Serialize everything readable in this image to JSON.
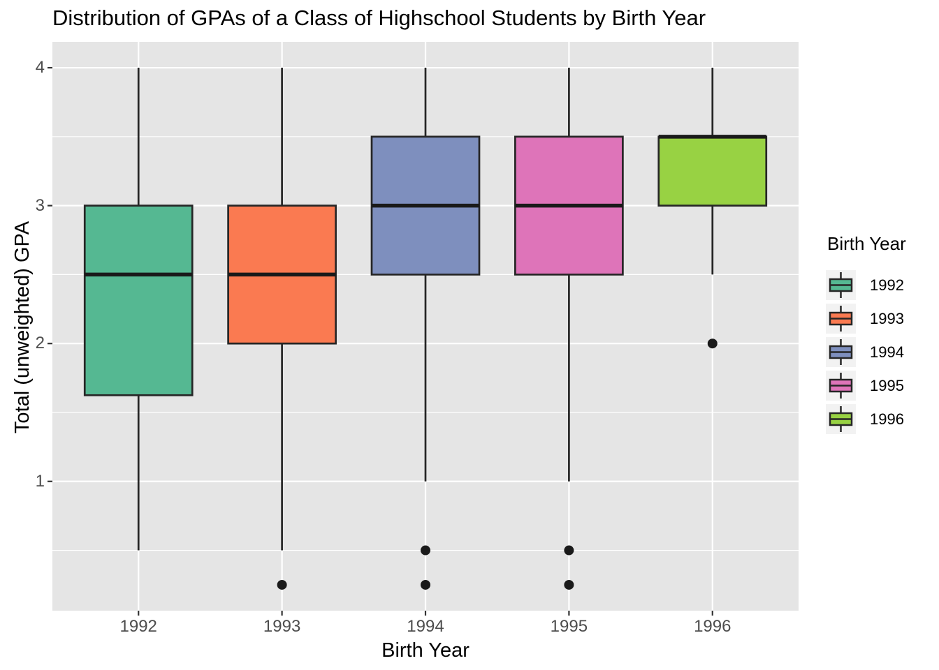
{
  "title": "Distribution of GPAs of a Class of Highschool Students by Birth Year",
  "legend": {
    "title": "Birth Year",
    "entries": [
      {
        "label": "1992",
        "color": "#55B892"
      },
      {
        "label": "1993",
        "color": "#FA7A51"
      },
      {
        "label": "1994",
        "color": "#7E8FBE"
      },
      {
        "label": "1995",
        "color": "#DE74B9"
      },
      {
        "label": "1996",
        "color": "#98D243"
      }
    ]
  },
  "chart_data": {
    "type": "boxplot",
    "title": "Distribution of GPAs of a Class of Highschool Students by Birth Year",
    "xlabel": "Birth Year",
    "ylabel": "Total (unweighted) GPA",
    "categories": [
      "1992",
      "1993",
      "1994",
      "1995",
      "1996"
    ],
    "series": [
      {
        "name": "1992",
        "color": "#55B892",
        "whisker_low": 0.5,
        "q1": 1.625,
        "median": 2.5,
        "q3": 3.0,
        "whisker_high": 4.0,
        "outliers": []
      },
      {
        "name": "1993",
        "color": "#FA7A51",
        "whisker_low": 0.5,
        "q1": 2.0,
        "median": 2.5,
        "q3": 3.0,
        "whisker_high": 4.0,
        "outliers": [
          0.25
        ]
      },
      {
        "name": "1994",
        "color": "#7E8FBE",
        "whisker_low": 1.0,
        "q1": 2.5,
        "median": 3.0,
        "q3": 3.5,
        "whisker_high": 4.0,
        "outliers": [
          0.5,
          0.25
        ]
      },
      {
        "name": "1995",
        "color": "#DE74B9",
        "whisker_low": 1.0,
        "q1": 2.5,
        "median": 3.0,
        "q3": 3.5,
        "whisker_high": 4.0,
        "outliers": [
          0.5,
          0.25
        ]
      },
      {
        "name": "1996",
        "color": "#98D243",
        "whisker_low": 2.5,
        "q1": 3.0,
        "median": 3.5,
        "q3": 3.5,
        "whisker_high": 4.0,
        "outliers": [
          2.0
        ]
      }
    ],
    "ylim": [
      0.0625,
      4.1875
    ],
    "y_ticks": [
      {
        "label": "4",
        "value": 4
      },
      {
        "label": "3",
        "value": 3
      },
      {
        "label": "2",
        "value": 2
      },
      {
        "label": "1",
        "value": 1
      }
    ],
    "y_minor_gridlines": [
      0.5,
      1.5,
      2.5,
      3.5
    ],
    "grid": "on",
    "legend_position": "right",
    "style": {
      "panel_bg": "#E5E5E5",
      "grid_color": "#FFFFFF",
      "box_border": "#262626",
      "median_color": "#1A1A1A",
      "outlier_color": "#1A1A1A",
      "tick_mark_color": "#333333",
      "tick_label_color": "#4D4D4D",
      "legend_key_bg": "#F2F2F2"
    }
  }
}
